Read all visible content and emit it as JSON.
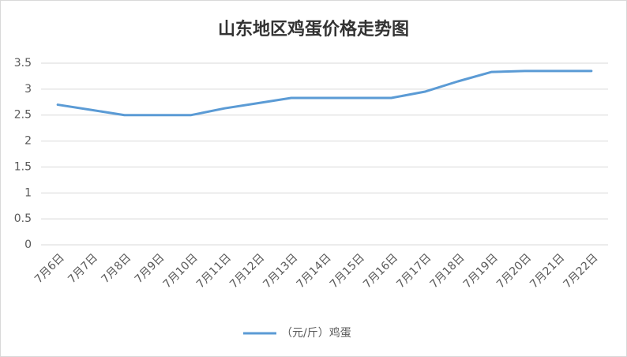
{
  "chart_data": {
    "type": "line",
    "title": "山东地区鸡蛋价格走势图",
    "categories": [
      "7月6日",
      "7月7日",
      "7月8日",
      "7月9日",
      "7月10日",
      "7月11日",
      "7月12日",
      "7月13日",
      "7月14日",
      "7月15日",
      "7月16日",
      "7月17日",
      "7月18日",
      "7月19日",
      "7月20日",
      "7月21日",
      "7月22日"
    ],
    "series": [
      {
        "name": "（元/斤）鸡蛋",
        "color": "#5b9bd5",
        "values": [
          2.7,
          2.6,
          2.5,
          2.5,
          2.5,
          2.63,
          2.73,
          2.83,
          2.83,
          2.83,
          2.83,
          2.95,
          3.15,
          3.33,
          3.35,
          3.35,
          3.35
        ]
      }
    ],
    "ylim": [
      0,
      3.5
    ],
    "yticks": [
      0,
      0.5,
      1,
      1.5,
      2,
      2.5,
      3,
      3.5
    ],
    "grid": true,
    "legend": "bottom"
  }
}
